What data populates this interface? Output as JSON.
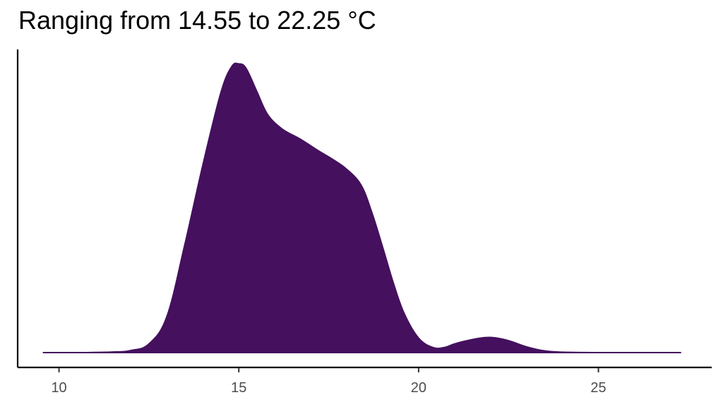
{
  "chart_data": {
    "type": "area",
    "title": "Ranging from 14.55 to 22.25 °C",
    "xlabel": "",
    "ylabel": "",
    "xlim": [
      8.85,
      28.15
    ],
    "ylim": [
      0,
      0.21
    ],
    "xticks": [
      10,
      15,
      20,
      25
    ],
    "xtick_labels": [
      "10",
      "15",
      "20",
      "25"
    ],
    "grid": false,
    "fill_color": "#45105e",
    "series": [
      {
        "x": [
          9.55,
          10.5,
          11.5,
          12.0,
          12.5,
          13.0,
          13.5,
          14.0,
          14.5,
          14.8,
          15.0,
          15.2,
          15.5,
          15.8,
          16.2,
          16.7,
          17.2,
          17.6,
          18.0,
          18.4,
          18.7,
          19.0,
          19.3,
          19.6,
          20.0,
          20.4,
          20.7,
          21.0,
          21.3,
          21.7,
          22.0,
          22.3,
          22.6,
          23.0,
          23.5,
          24.0,
          25.0,
          26.0,
          27.3
        ],
        "y": [
          0.0,
          0.0,
          0.0004,
          0.0015,
          0.006,
          0.025,
          0.075,
          0.13,
          0.18,
          0.198,
          0.2,
          0.197,
          0.181,
          0.165,
          0.155,
          0.148,
          0.14,
          0.134,
          0.127,
          0.116,
          0.097,
          0.073,
          0.048,
          0.027,
          0.01,
          0.0035,
          0.0035,
          0.006,
          0.008,
          0.01,
          0.0105,
          0.0095,
          0.0075,
          0.004,
          0.0012,
          0.0003,
          0.0,
          0.0,
          0.0
        ]
      }
    ]
  }
}
